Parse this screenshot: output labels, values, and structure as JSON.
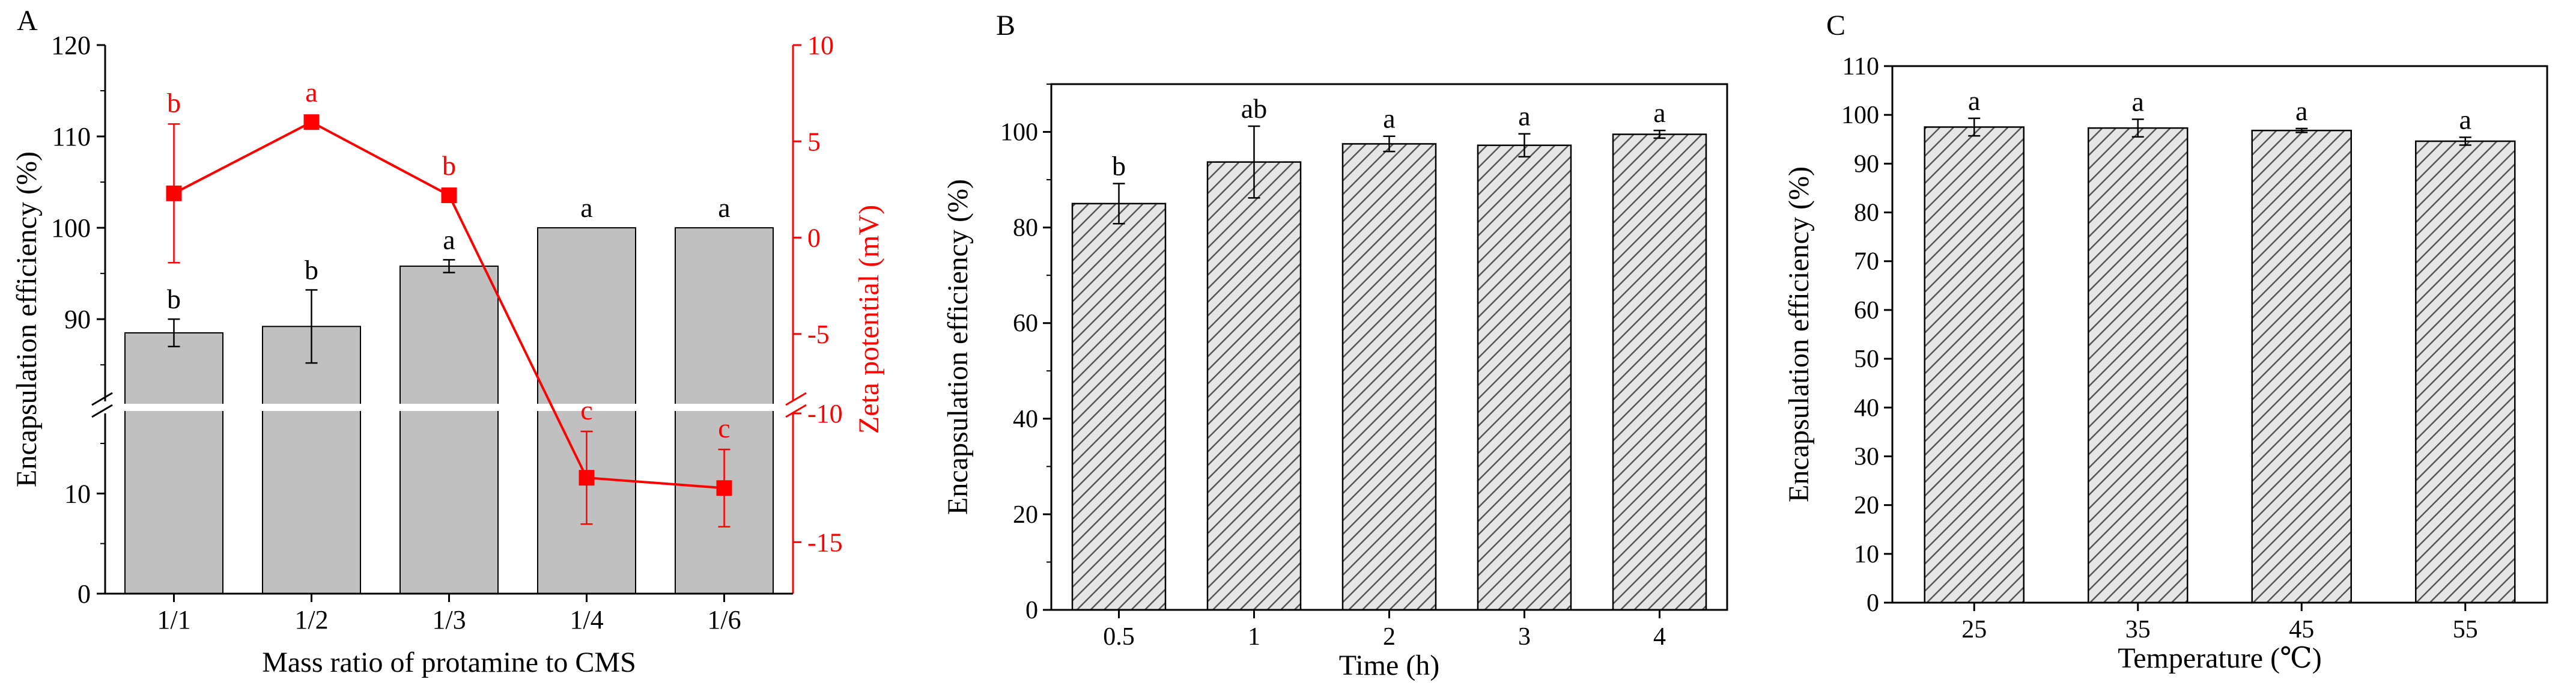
{
  "colors": {
    "axis": "#000000",
    "bar_a": "#c0c0c0",
    "bar_hatch_stroke": "#555555",
    "bar_hatch_bg": "#e8e8e8",
    "zeta": "#ff0000"
  },
  "chart_data": [
    {
      "panel": "A",
      "type": "bar",
      "title": "",
      "categories": [
        "1/1",
        "1/2",
        "1/3",
        "1/4",
        "1/6"
      ],
      "xlabel": "Mass ratio of protamine to CMS",
      "ylabel": "Encapsulation efficiency (%)",
      "y_broken_axis": true,
      "ylim_lower_segment": [
        0,
        18
      ],
      "ylim_upper_segment": [
        81,
        120
      ],
      "yticks": [
        0,
        10,
        90,
        100,
        110,
        120
      ],
      "series": [
        {
          "name": "Encapsulation efficiency",
          "values": [
            88.5,
            89.2,
            95.8,
            100,
            100
          ],
          "errors": [
            1.5,
            4.0,
            0.7,
            0,
            0
          ],
          "letters": [
            "b",
            "b",
            "a",
            "a",
            "a"
          ]
        }
      ],
      "secondary_axis": {
        "type": "line",
        "ylabel": "Zeta potential (mV)",
        "broken_axis": true,
        "ylim_lower_segment": [
          -17,
          -10
        ],
        "ylim_upper_segment": [
          -8.5,
          10
        ],
        "yticks": [
          -15,
          -10,
          -5,
          0,
          5,
          10
        ],
        "series": [
          {
            "name": "Zeta potential",
            "values": [
              2.3,
              6.0,
              2.2,
              -12.5,
              -12.9
            ],
            "errors": [
              3.6,
              0,
              0,
              1.8,
              1.5
            ],
            "letters": [
              "b",
              "a",
              "b",
              "c",
              "c"
            ]
          }
        ]
      }
    },
    {
      "panel": "B",
      "type": "bar",
      "title": "",
      "categories": [
        "0.5",
        "1",
        "2",
        "3",
        "4"
      ],
      "xlabel": "Time (h)",
      "ylabel": "Encapsulation efficiency (%)",
      "ylim": [
        0,
        110
      ],
      "yticks": [
        0,
        20,
        40,
        60,
        80,
        100
      ],
      "series": [
        {
          "name": "Encapsulation efficiency",
          "values": [
            85,
            93.7,
            97.5,
            97.2,
            99.5
          ],
          "errors": [
            4.2,
            7.5,
            1.6,
            2.4,
            0.8
          ],
          "letters": [
            "b",
            "ab",
            "a",
            "a",
            "a"
          ]
        }
      ]
    },
    {
      "panel": "C",
      "type": "bar",
      "title": "",
      "categories": [
        "25",
        "35",
        "45",
        "55"
      ],
      "xlabel": "Temperature (℃)",
      "ylabel": "Encapsulation efficiency (%)",
      "ylim": [
        0,
        110
      ],
      "yticks": [
        0,
        10,
        20,
        30,
        40,
        50,
        60,
        70,
        80,
        90,
        100,
        110
      ],
      "series": [
        {
          "name": "Encapsulation efficiency",
          "values": [
            97.5,
            97.3,
            96.8,
            94.6
          ],
          "errors": [
            1.8,
            1.8,
            0.4,
            0.8
          ],
          "letters": [
            "a",
            "a",
            "a",
            "a"
          ]
        }
      ]
    }
  ]
}
